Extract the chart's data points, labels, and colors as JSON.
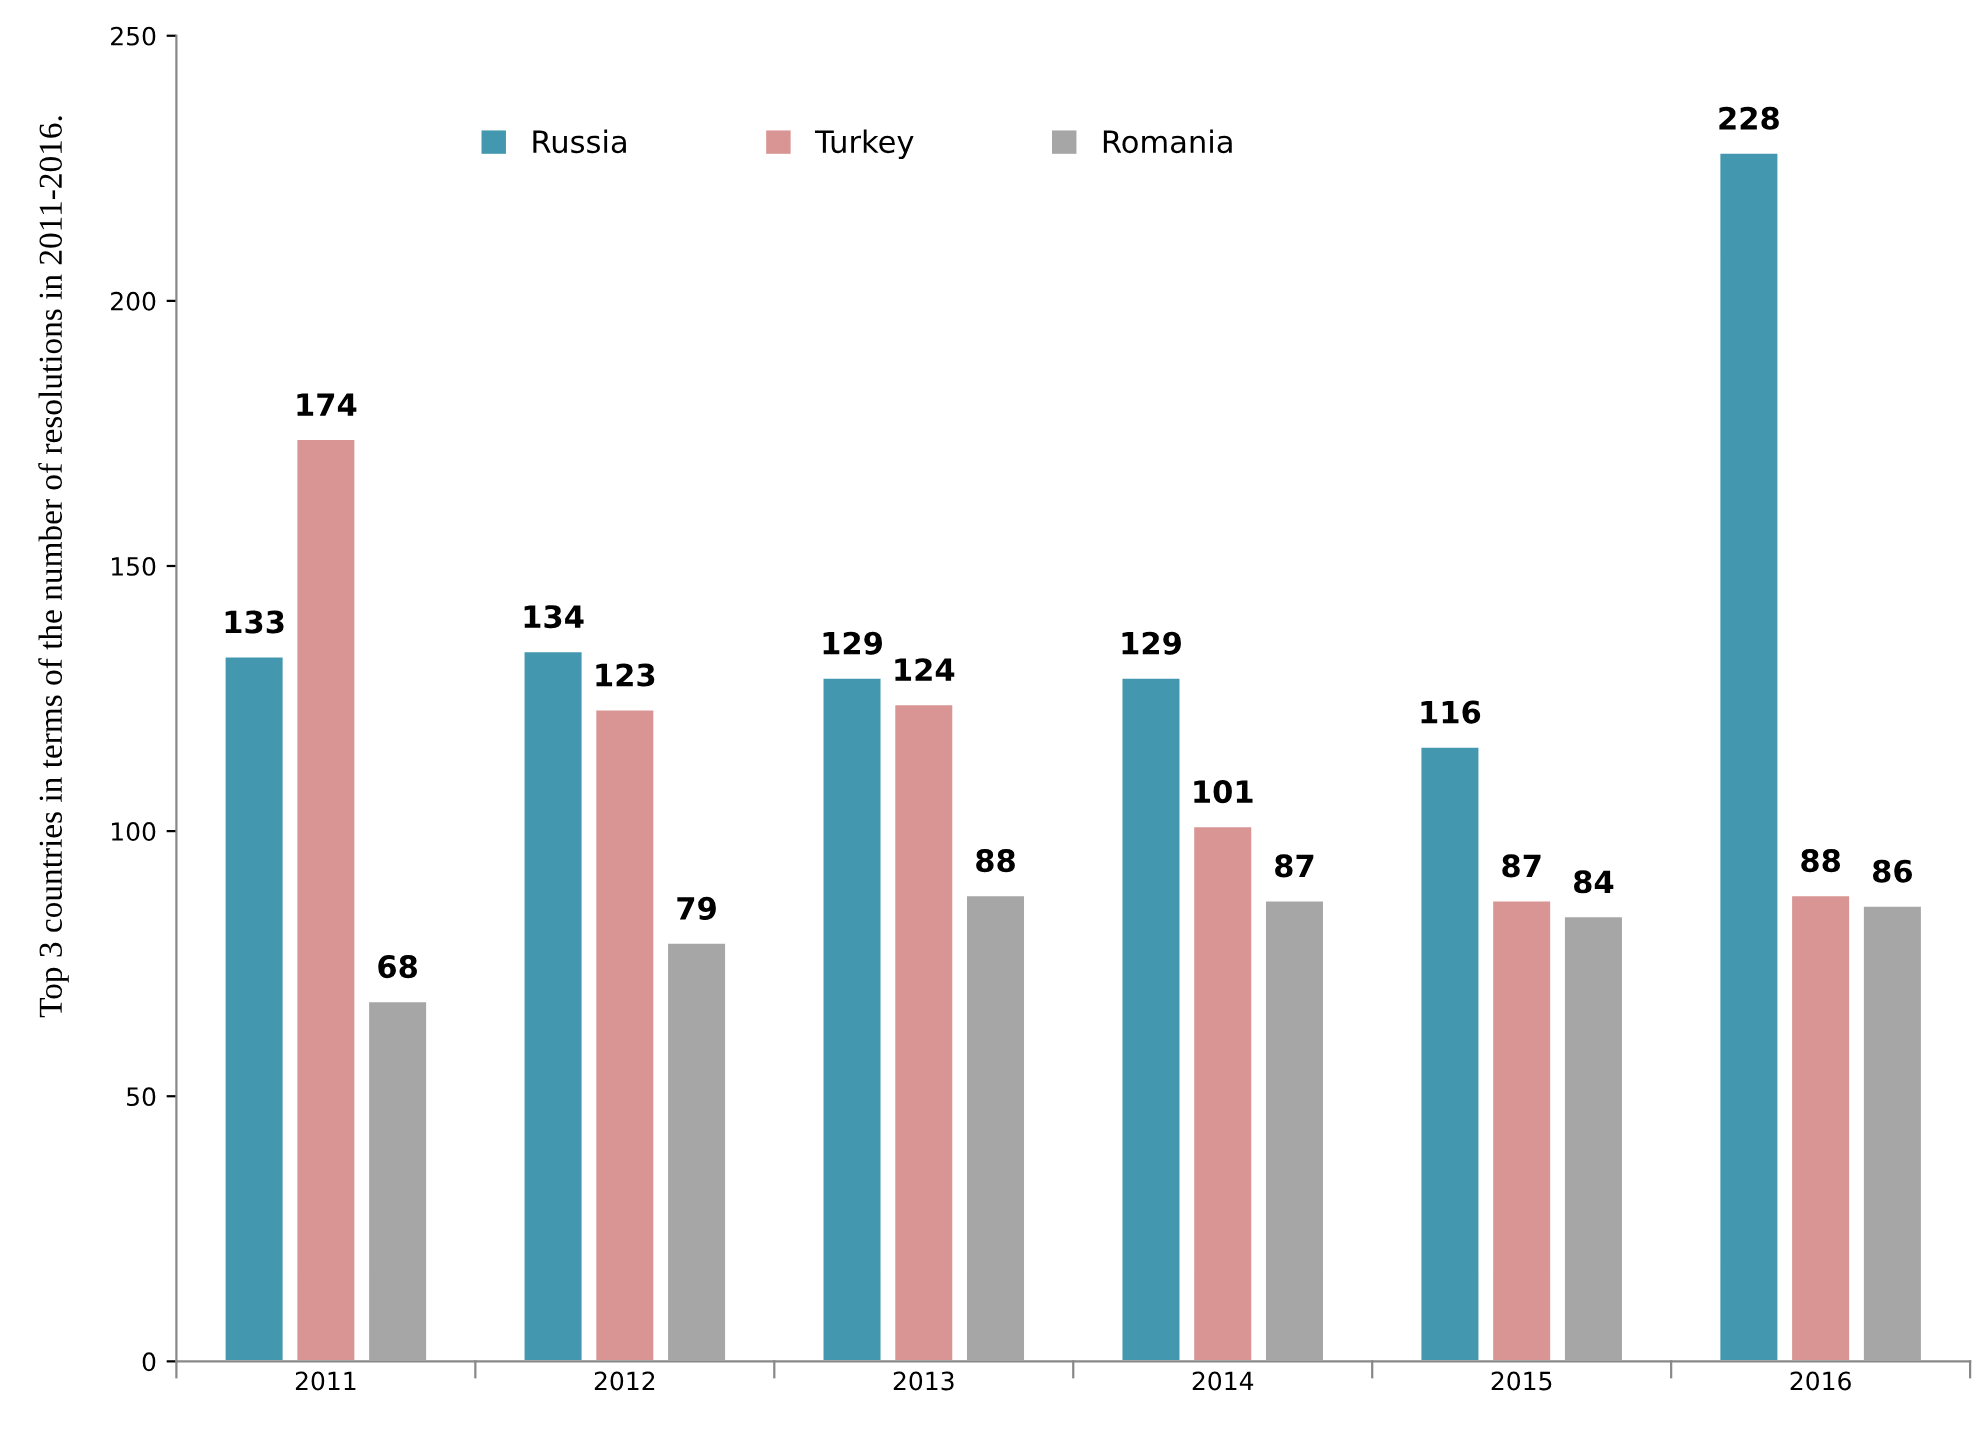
{
  "chart_data": {
    "type": "bar",
    "ylabel": "Top 3 countries in terms of the number of resolutions in 2011-2016.",
    "categories": [
      "2011",
      "2012",
      "2013",
      "2014",
      "2015",
      "2016"
    ],
    "series": [
      {
        "name": "Russia",
        "color": "#4397ae",
        "values": [
          133,
          134,
          129,
          129,
          116,
          228
        ]
      },
      {
        "name": "Turkey",
        "color": "#d99594",
        "values": [
          174,
          123,
          124,
          101,
          87,
          88
        ]
      },
      {
        "name": "Romania",
        "color": "#a6a6a6",
        "values": [
          68,
          79,
          88,
          87,
          84,
          86
        ]
      }
    ],
    "ylim": [
      0,
      250
    ],
    "yticks": [
      0,
      50,
      100,
      150,
      200,
      250
    ],
    "data_labels": true,
    "legend": "top",
    "grid": false
  }
}
